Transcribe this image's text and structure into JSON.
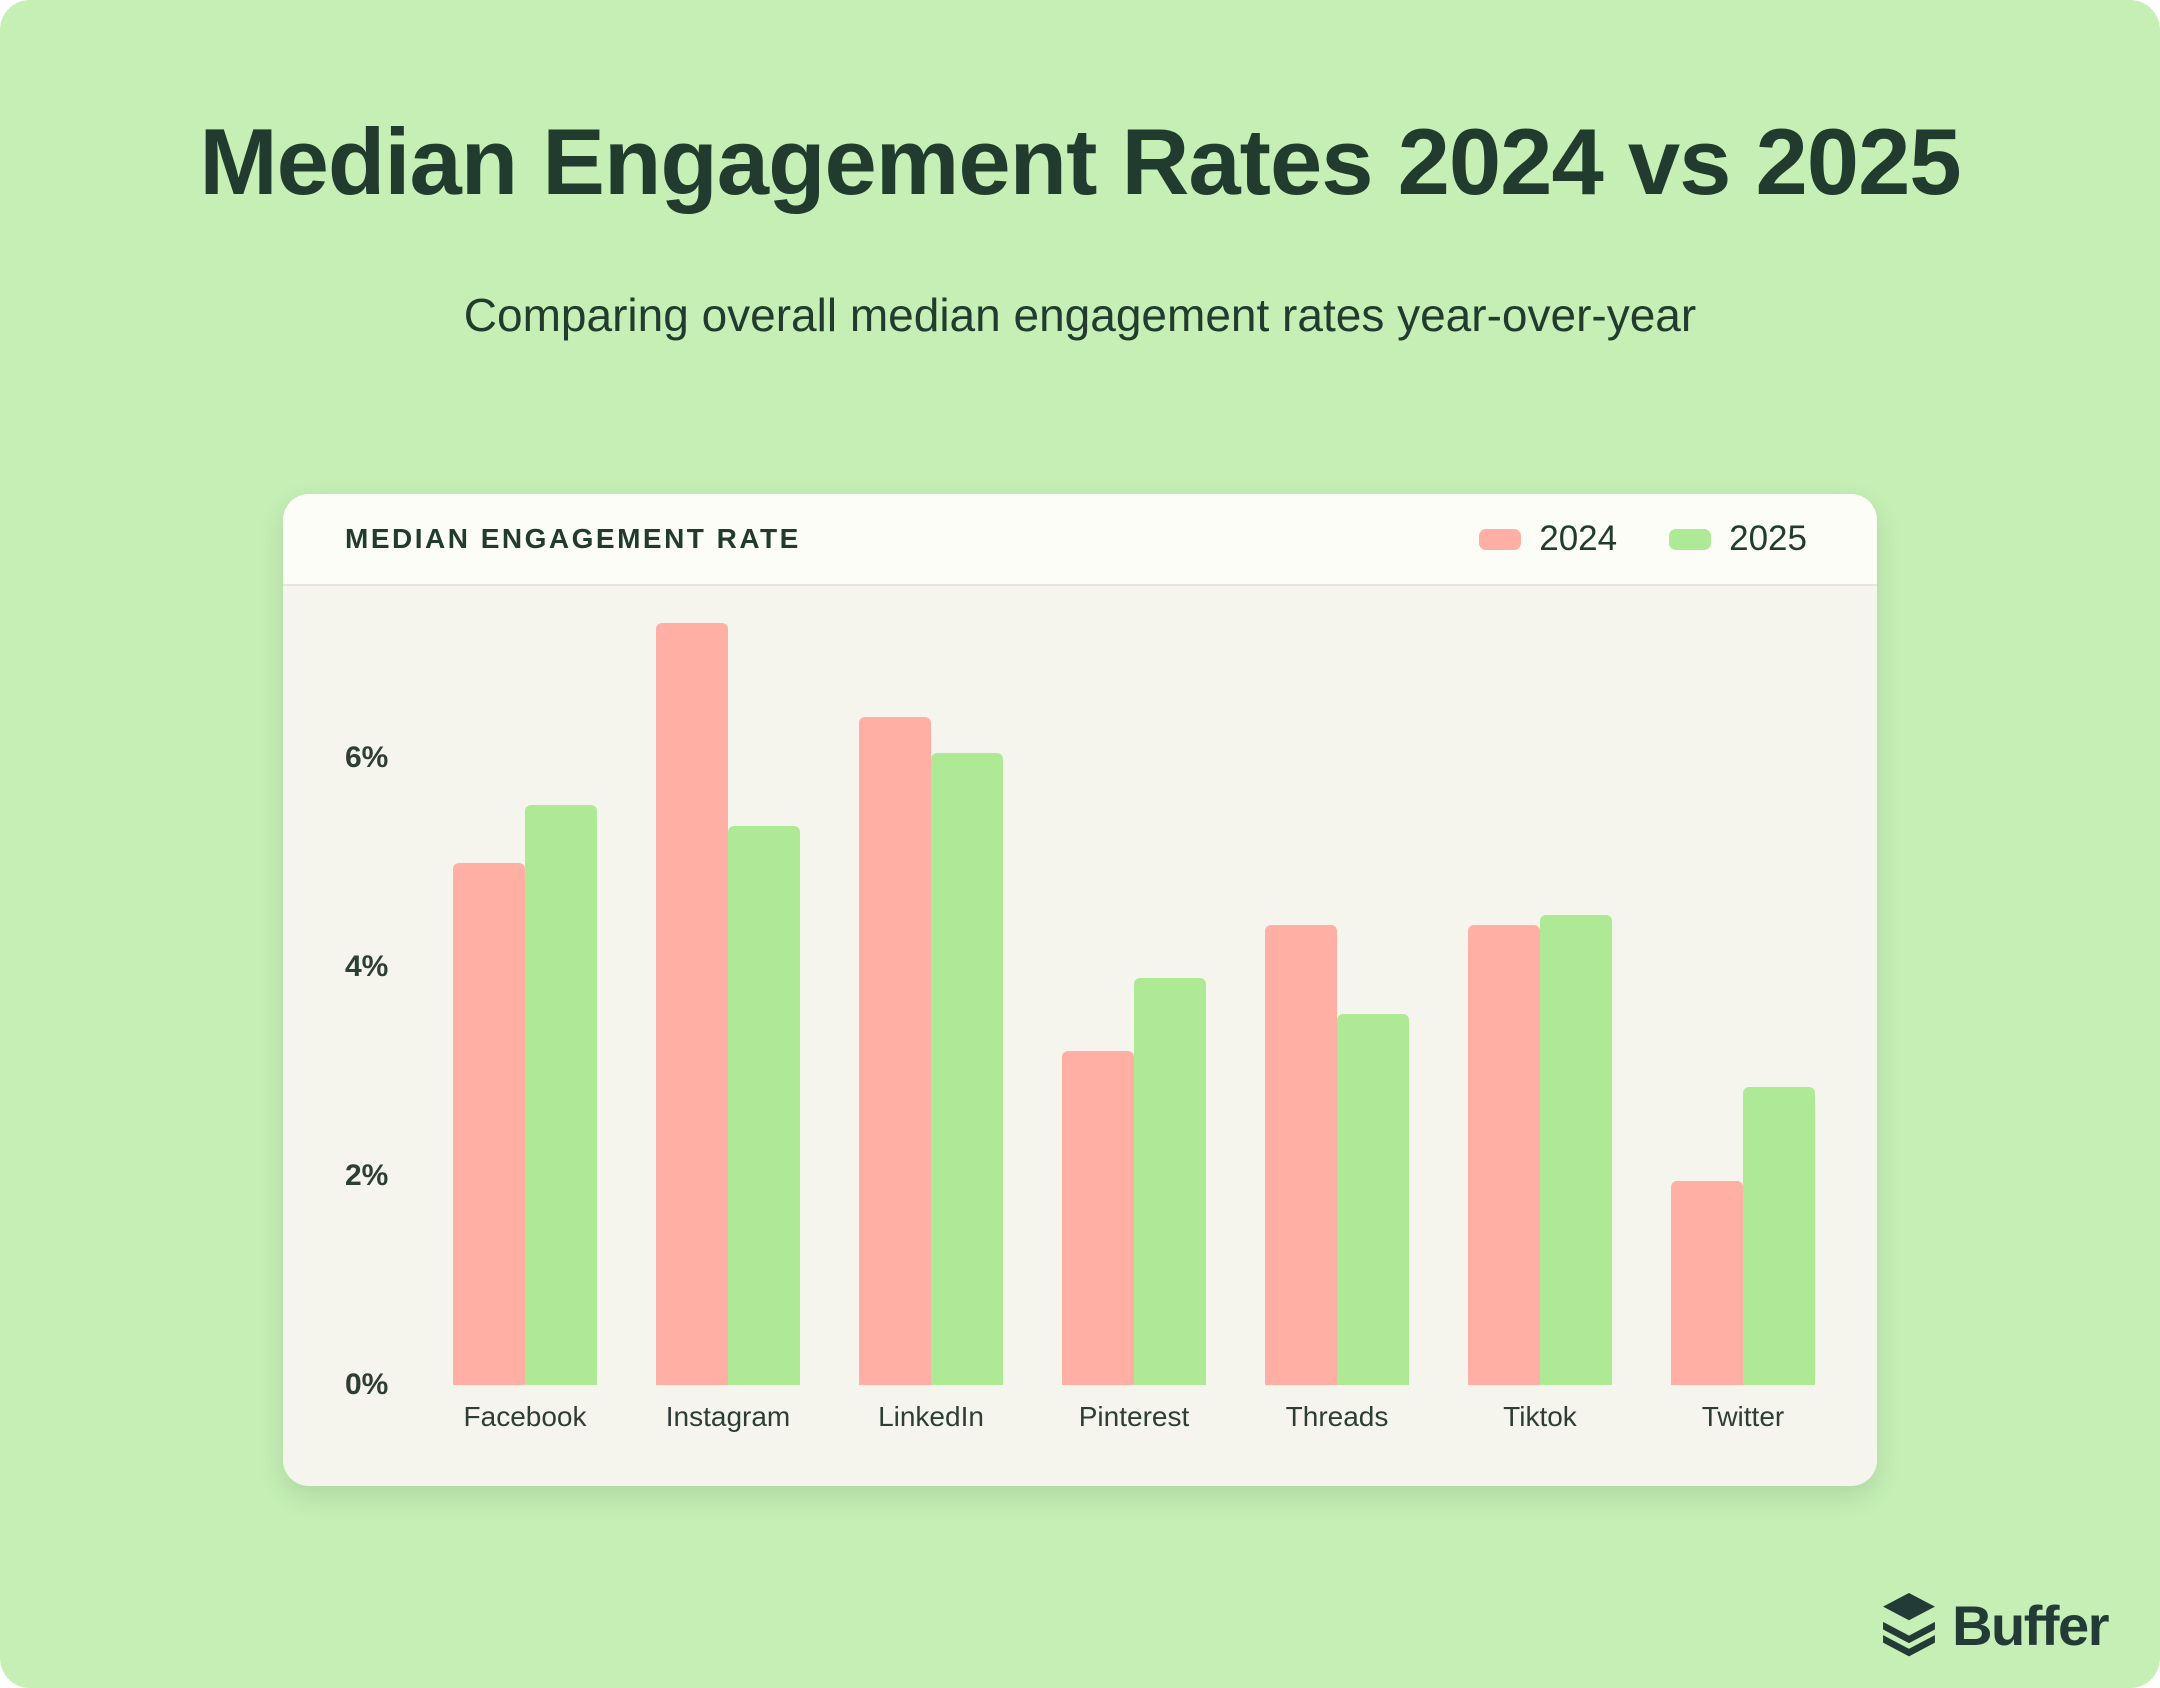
{
  "page": {
    "title": "Median Engagement Rates 2024 vs 2025",
    "subtitle": "Comparing overall median engagement rates year-over-year"
  },
  "card": {
    "header_title": "MEDIAN ENGAGEMENT RATE"
  },
  "brand": {
    "wordmark": "Buffer"
  },
  "colors": {
    "background": "#c5efb5",
    "card-header-bg": "#fdfdf8",
    "card-body-bg": "#f5f5ed",
    "divider": "#e6e6dd",
    "text-dark": "#213c2e",
    "text-body": "#2e3d35",
    "bar-2024": "#ffafa4",
    "bar-2025": "#aee996",
    "brand-dark": "#233b36"
  },
  "chart_data": {
    "type": "bar",
    "title": "MEDIAN ENGAGEMENT RATE",
    "categories": [
      "Facebook",
      "Instagram",
      "LinkedIn",
      "Pinterest",
      "Threads",
      "Tiktok",
      "Twitter"
    ],
    "series": [
      {
        "name": "2024",
        "color": "#ffafa4",
        "values": [
          5.0,
          7.3,
          6.4,
          3.2,
          4.4,
          4.4,
          1.95
        ]
      },
      {
        "name": "2025",
        "color": "#aee996",
        "values": [
          5.55,
          5.35,
          6.05,
          3.9,
          3.55,
          4.5,
          2.85
        ]
      }
    ],
    "xlabel": "",
    "ylabel": "Median engagement rate (%)",
    "ylim": [
      0,
      7.65
    ],
    "yticks": [
      {
        "value": 0,
        "label": "0%"
      },
      {
        "value": 2,
        "label": "2%"
      },
      {
        "value": 4,
        "label": "4%"
      },
      {
        "value": 6,
        "label": "6%"
      }
    ],
    "grid": false,
    "legend_position": "top-right"
  }
}
